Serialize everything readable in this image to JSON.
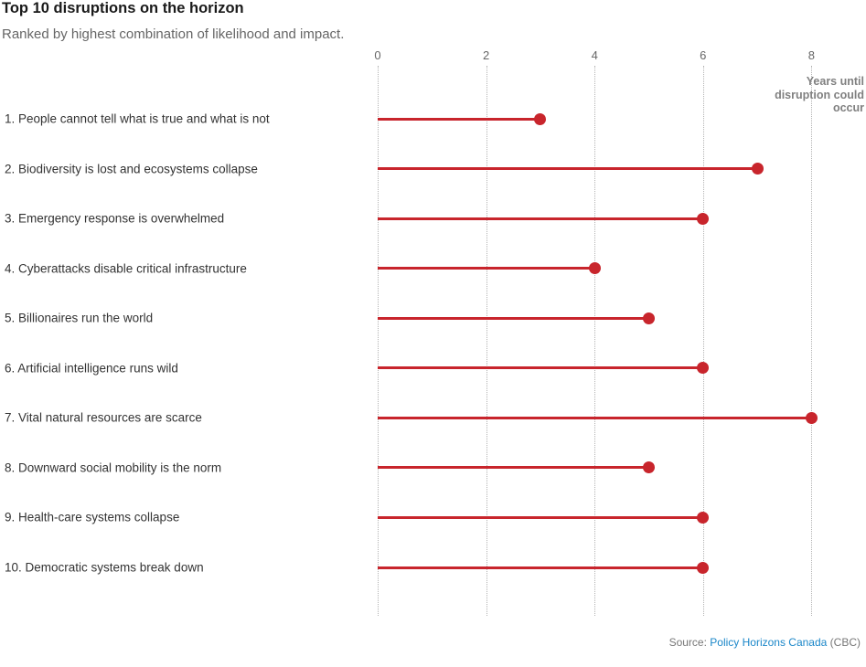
{
  "header": {
    "title": "Top 10 disruptions on the horizon",
    "subtitle": "Ranked by highest combination of likelihood and impact."
  },
  "axis": {
    "tick_labels": [
      "0",
      "2",
      "4",
      "6",
      "8"
    ],
    "note_lines": [
      "Years until",
      "disruption could",
      "occur"
    ]
  },
  "chart_data": {
    "type": "bar",
    "variant": "horizontal-lollipop",
    "title": "Top 10 disruptions on the horizon",
    "subtitle": "Ranked by highest combination of likelihood and impact.",
    "xlabel": "Years until disruption could occur",
    "ylabel": "",
    "xlim": [
      0,
      9
    ],
    "tick_values": [
      0,
      2,
      4,
      6,
      8
    ],
    "grid": "vertical-dotted",
    "categories": [
      "1. People cannot tell what is true and what is not",
      "2. Biodiversity is lost and ecosystems collapse",
      "3. Emergency response is overwhelmed",
      "4. Cyberattacks disable critical infrastructure",
      "5. Billionaires run the world",
      "6. Artificial intelligence runs wild",
      "7. Vital natural resources are scarce",
      "8. Downward social mobility is the norm",
      "9. Health-care systems collapse",
      "10. Democratic systems break down"
    ],
    "values": [
      3,
      7,
      6,
      4,
      5,
      6,
      8,
      5,
      6,
      6
    ]
  },
  "footer": {
    "source_prefix": "Source: ",
    "source_link": "Policy Horizons Canada",
    "source_suffix": " (CBC)"
  },
  "colors": {
    "accent_red": "#c8252c",
    "link_blue": "#1b87c9",
    "grid_gray": "#b3b3b3",
    "text_dark": "#333333",
    "text_gray": "#666666",
    "axis_note_gray": "#808080"
  }
}
